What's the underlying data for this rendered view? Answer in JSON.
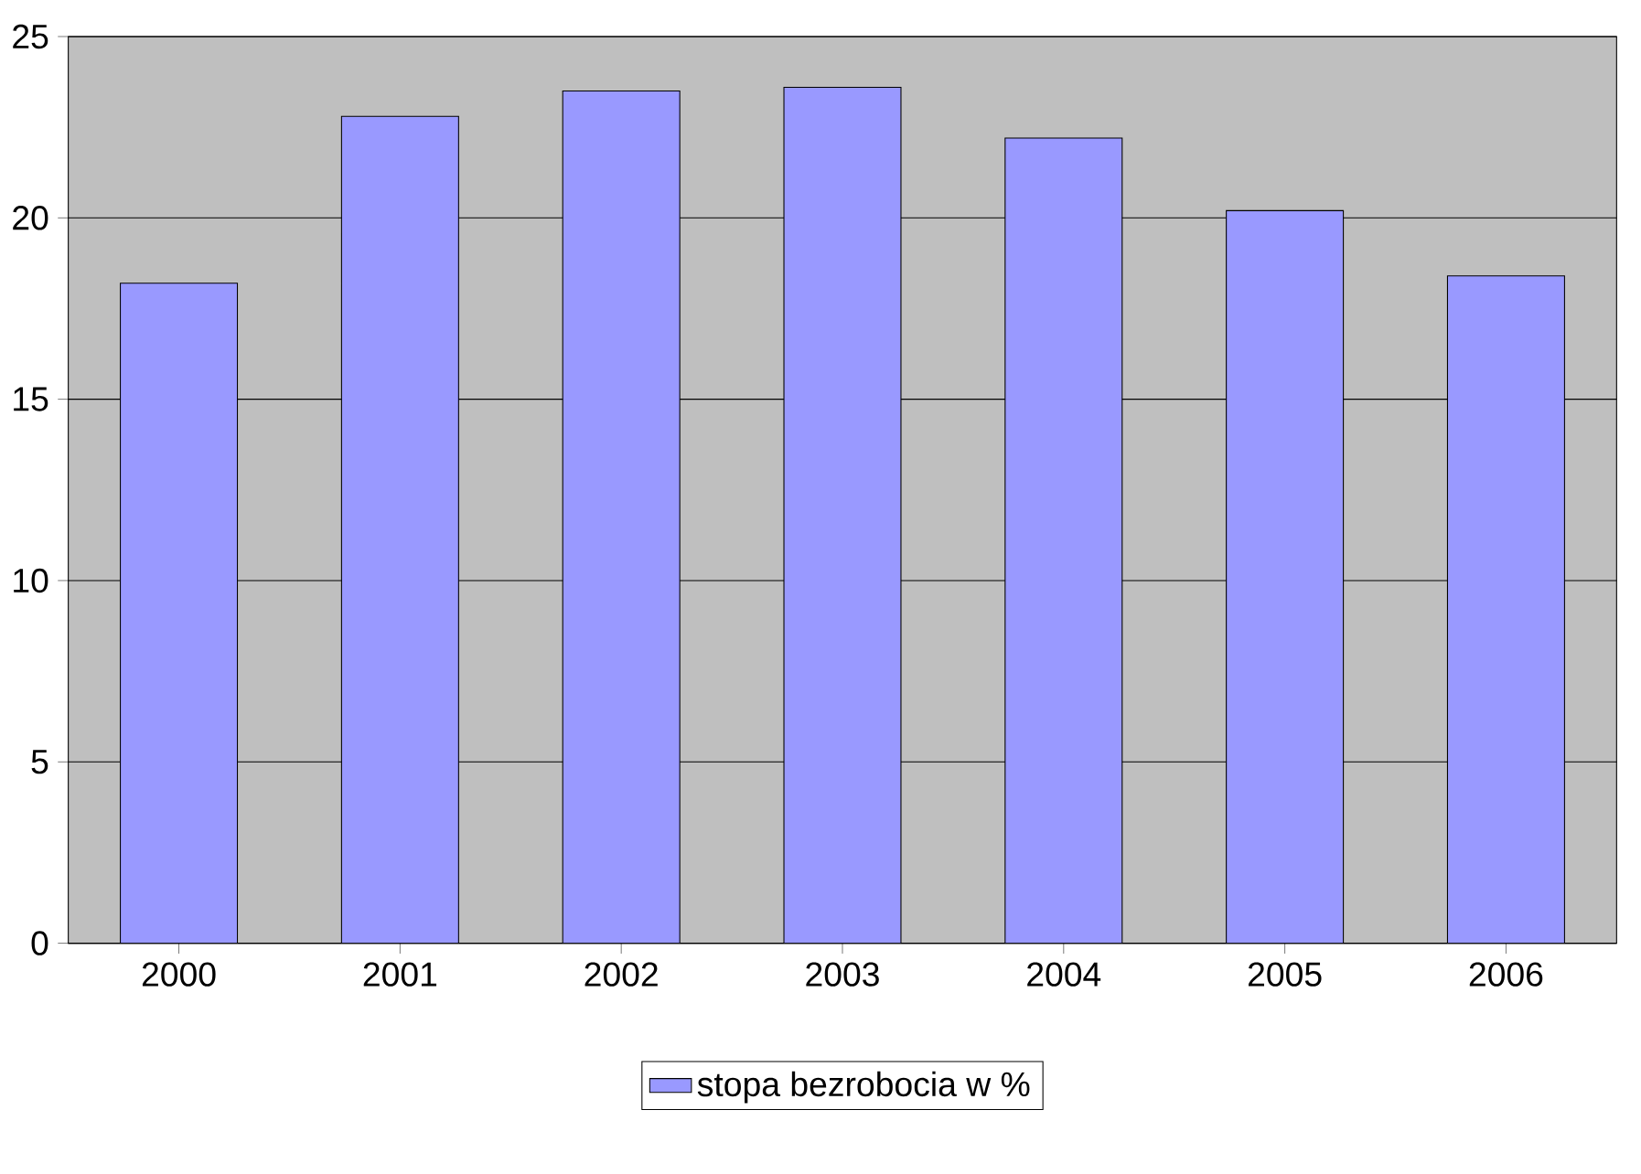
{
  "chart_data": {
    "type": "bar",
    "categories": [
      "2000",
      "2001",
      "2002",
      "2003",
      "2004",
      "2005",
      "2006"
    ],
    "series": [
      {
        "name": "stopa bezrobocia w %",
        "color": "#9999ff",
        "values": [
          18.2,
          22.8,
          23.5,
          23.6,
          22.2,
          20.2,
          18.4
        ]
      }
    ],
    "ylim": [
      0,
      25
    ],
    "yticks": [
      0,
      5,
      10,
      15,
      20,
      25
    ],
    "grid": "y",
    "legend": "bottom"
  }
}
